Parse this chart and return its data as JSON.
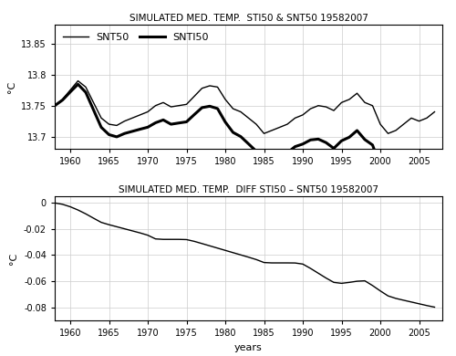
{
  "title_upper": "SIMULATED MED. TEMP.  STI50 & SNT50 19582007",
  "title_lower": "SIMULATED MED. TEMP.  DIFF STI50 – SNT50 19582007",
  "xlabel": "years",
  "ylabel_upper": "°C",
  "ylabel_lower": "°C",
  "legend_labels": [
    "SNT50",
    "SNTI50"
  ],
  "upper_ylim": [
    13.68,
    13.88
  ],
  "upper_yticks": [
    13.7,
    13.75,
    13.8,
    13.85
  ],
  "lower_ylim": [
    -0.09,
    0.005
  ],
  "lower_yticks": [
    0,
    -0.02,
    -0.04,
    -0.06,
    -0.08
  ],
  "xticks": [
    1960,
    1965,
    1970,
    1975,
    1980,
    1985,
    1990,
    1995,
    2000,
    2005
  ],
  "xlim": [
    1958,
    2008
  ],
  "line_color": "#000000",
  "thin_lw": 1.0,
  "thick_lw": 2.2,
  "diff_lw": 1.0,
  "background_color": "#ffffff",
  "grid_color": "#cccccc"
}
